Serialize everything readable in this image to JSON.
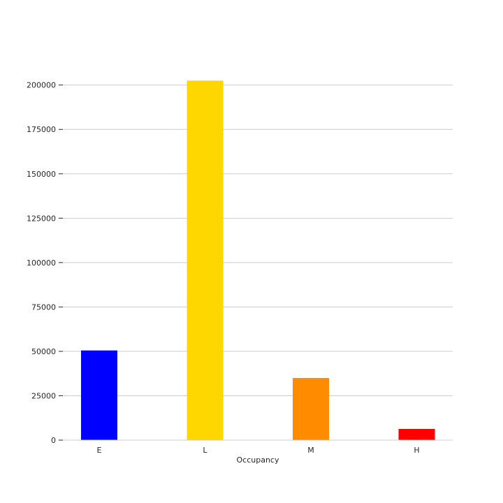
{
  "chart_data": {
    "type": "bar",
    "title": "",
    "xlabel": "Occupancy",
    "ylabel": "",
    "categories": [
      "E",
      "L",
      "M",
      "H"
    ],
    "values": [
      50500,
      202500,
      35000,
      6300
    ],
    "colors": [
      "#0000ff",
      "#ffd700",
      "#ff8c00",
      "#ff0000"
    ],
    "ylim": [
      0,
      205000
    ],
    "yticks": [
      0,
      25000,
      50000,
      75000,
      100000,
      125000,
      150000,
      175000,
      200000
    ],
    "ytick_labels": [
      "0",
      "25000",
      "50000",
      "75000",
      "100000",
      "125000",
      "150000",
      "175000",
      "200000"
    ],
    "grid": "horizontal",
    "legend": "none"
  }
}
